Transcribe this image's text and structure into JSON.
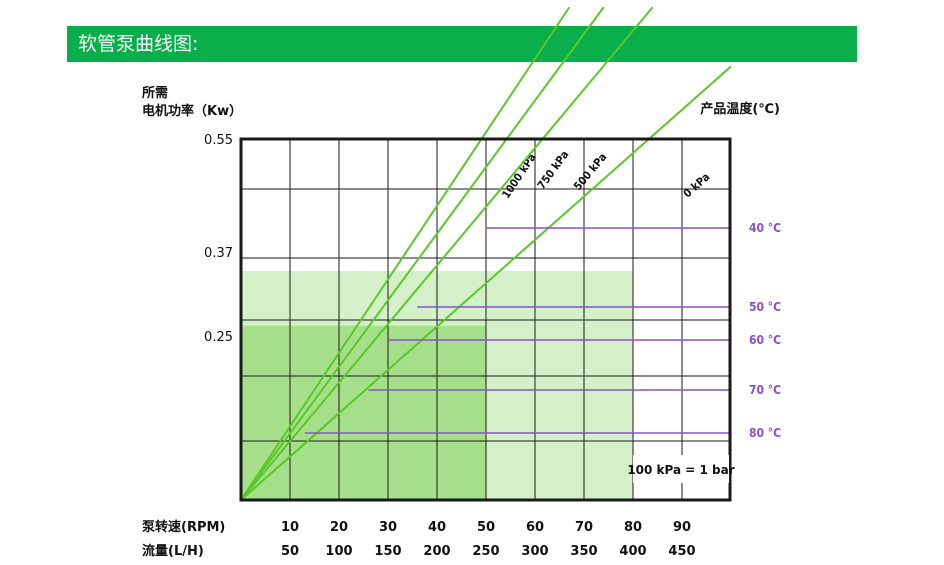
{
  "header": {
    "title": "软管泵曲线图:"
  },
  "colors": {
    "header_bg": "#0aaf4b",
    "zone_light": "#d4f0c8",
    "zone_mid": "#a6df8a",
    "zone_dark": "#96d97c",
    "curve": "#5ac827",
    "temp_line": "#8a4fd6",
    "frame": "#1a1a1a"
  },
  "chart_data": {
    "type": "line",
    "title": "",
    "y_label_lines": [
      "所需",
      "电机功率（Kw）"
    ],
    "y_ticks": [
      "0.55",
      "0.37",
      "0.25"
    ],
    "y_tick_values": [
      0.55,
      0.37,
      0.25
    ],
    "right_label": "产品温度(℃)",
    "x_axes": [
      {
        "label": "泵转速(RPM)",
        "ticks": [
          "10",
          "20",
          "30",
          "40",
          "50",
          "60",
          "70",
          "80",
          "90"
        ]
      },
      {
        "label": "流量(L/H)",
        "ticks": [
          "50",
          "100",
          "150",
          "200",
          "250",
          "300",
          "350",
          "400",
          "450"
        ]
      }
    ],
    "x": [
      0,
      10,
      20,
      30,
      40,
      50,
      60,
      70,
      80,
      90,
      100
    ],
    "series": [
      {
        "name": "1000 kPa",
        "points": [
          [
            0,
            0
          ],
          [
            67,
            0.75
          ]
        ]
      },
      {
        "name": "750 kPa",
        "points": [
          [
            0,
            0
          ],
          [
            74,
            0.75
          ]
        ]
      },
      {
        "name": "500 kPa",
        "points": [
          [
            0,
            0
          ],
          [
            84,
            0.75
          ]
        ]
      },
      {
        "name": "0 kPa",
        "points": [
          [
            0,
            0
          ],
          [
            100,
            0.66
          ]
        ]
      }
    ],
    "temperature_lines": [
      {
        "label": "40 °C",
        "x_start_rpm": 50
      },
      {
        "label": "50 °C",
        "x_start_rpm": 36
      },
      {
        "label": "60 °C",
        "x_start_rpm": 30
      },
      {
        "label": "70 °C",
        "x_start_rpm": 26
      },
      {
        "label": "80 °C",
        "x_start_rpm": 13
      }
    ],
    "zones": [
      {
        "power_kw": 0.37,
        "max_rpm": 80
      },
      {
        "power_kw": 0.25,
        "max_rpm": 50
      }
    ],
    "note": "100 kPa = 1 bar"
  }
}
